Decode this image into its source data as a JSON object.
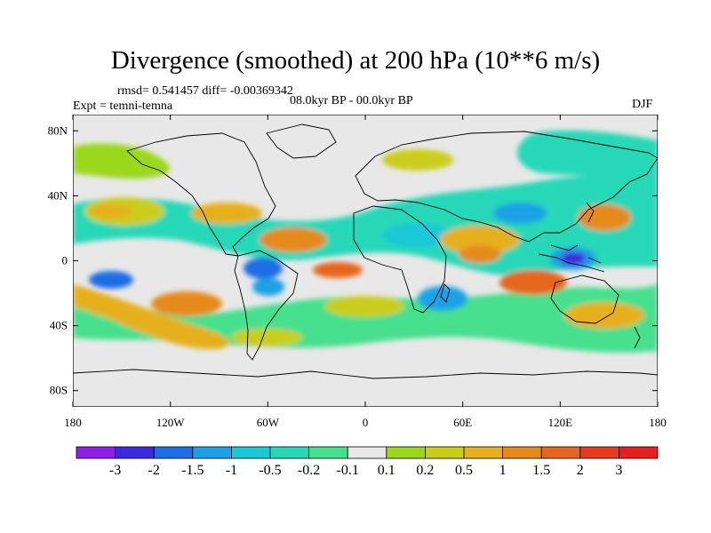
{
  "title": "Divergence (smoothed) at 200 hPa (10**6 m/s)",
  "stats": {
    "rmsd_text": "rmsd= 0.541457 diff= -0.00369342"
  },
  "experiment": "Expt = temni-temna",
  "period": "08.0kyr BP - 00.0kyr BP",
  "season": "DJF",
  "map": {
    "lat_ticks": [
      "80N",
      "40N",
      "0",
      "40S",
      "80S"
    ],
    "lon_ticks": [
      "180",
      "120W",
      "60W",
      "0",
      "60E",
      "120E",
      "180"
    ]
  },
  "colorbar": {
    "colors": [
      "#8f1fe6",
      "#3d2ae0",
      "#1f6de6",
      "#1fa0e6",
      "#1bc8d8",
      "#27d8b8",
      "#46e08e",
      "#e8e8e8",
      "#9bd81b",
      "#cbcd1b",
      "#e6b01f",
      "#e68a1f",
      "#e6661f",
      "#e63b1f",
      "#e61f1f"
    ],
    "labels": [
      "-3",
      "-2",
      "-1.5",
      "-1",
      "-0.5",
      "-0.2",
      "-0.1",
      "0.1",
      "0.2",
      "0.5",
      "1",
      "1.5",
      "2",
      "3"
    ]
  }
}
